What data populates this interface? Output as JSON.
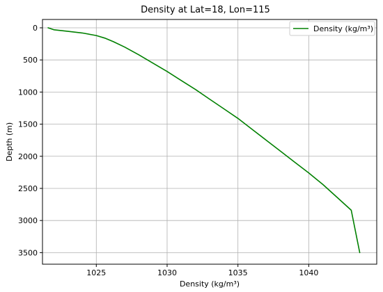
{
  "chart_data": {
    "type": "line",
    "title": "Density at Lat=18, Lon=115",
    "xlabel": "Density (kg/m³)",
    "ylabel": "Depth (m)",
    "xlim": [
      1021.2,
      1044.8
    ],
    "ylim": [
      3680,
      -130
    ],
    "y_inverted": true,
    "grid": true,
    "legend_placement": "top-right",
    "x_ticks": [
      1025,
      1030,
      1035,
      1040
    ],
    "y_ticks": [
      0,
      500,
      1000,
      1500,
      2000,
      2500,
      3000,
      3500
    ],
    "series": [
      {
        "name": "Density (kg/m³)",
        "color": "#008000",
        "x": [
          1021.6,
          1022.0,
          1023.0,
          1024.0,
          1025.0,
          1025.6,
          1026.2,
          1027.0,
          1028.0,
          1029.0,
          1030.0,
          1031.0,
          1032.0,
          1033.0,
          1034.0,
          1035.0,
          1036.0,
          1037.0,
          1038.0,
          1039.0,
          1040.0,
          1041.0,
          1042.0,
          1043.0,
          1043.6
        ],
        "y": [
          0,
          30,
          55,
          80,
          120,
          160,
          215,
          300,
          420,
          550,
          680,
          820,
          960,
          1110,
          1260,
          1410,
          1580,
          1750,
          1920,
          2090,
          2260,
          2440,
          2640,
          2840,
          3500
        ]
      }
    ]
  }
}
